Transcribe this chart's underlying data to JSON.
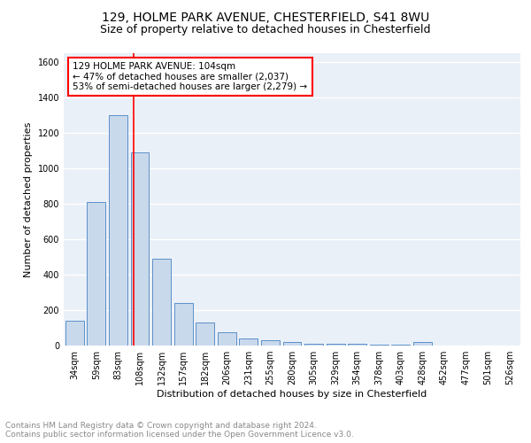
{
  "title1": "129, HOLME PARK AVENUE, CHESTERFIELD, S41 8WU",
  "title2": "Size of property relative to detached houses in Chesterfield",
  "xlabel": "Distribution of detached houses by size in Chesterfield",
  "ylabel": "Number of detached properties",
  "footnote": "Contains HM Land Registry data © Crown copyright and database right 2024.\nContains public sector information licensed under the Open Government Licence v3.0.",
  "bar_labels": [
    "34sqm",
    "59sqm",
    "83sqm",
    "108sqm",
    "132sqm",
    "157sqm",
    "182sqm",
    "206sqm",
    "231sqm",
    "255sqm",
    "280sqm",
    "305sqm",
    "329sqm",
    "354sqm",
    "378sqm",
    "403sqm",
    "428sqm",
    "452sqm",
    "477sqm",
    "501sqm",
    "526sqm"
  ],
  "bar_values": [
    140,
    810,
    1300,
    1090,
    490,
    240,
    130,
    75,
    42,
    30,
    20,
    12,
    10,
    8,
    5,
    5,
    20,
    0,
    0,
    0,
    0
  ],
  "bar_color": "#c9d9ec",
  "bar_edge_color": "#5b8fc9",
  "vline_color": "red",
  "annotation_text": "129 HOLME PARK AVENUE: 104sqm\n← 47% of detached houses are smaller (2,037)\n53% of semi-detached houses are larger (2,279) →",
  "annotation_box_color": "white",
  "annotation_box_edge_color": "red",
  "ylim": [
    0,
    1650
  ],
  "yticks": [
    0,
    200,
    400,
    600,
    800,
    1000,
    1200,
    1400,
    1600
  ],
  "bg_color": "#eaf0f8",
  "grid_color": "white",
  "title1_fontsize": 10,
  "title2_fontsize": 9,
  "annotation_fontsize": 7.5,
  "footnote_fontsize": 6.5,
  "xlabel_fontsize": 8,
  "ylabel_fontsize": 8,
  "tick_fontsize": 7
}
